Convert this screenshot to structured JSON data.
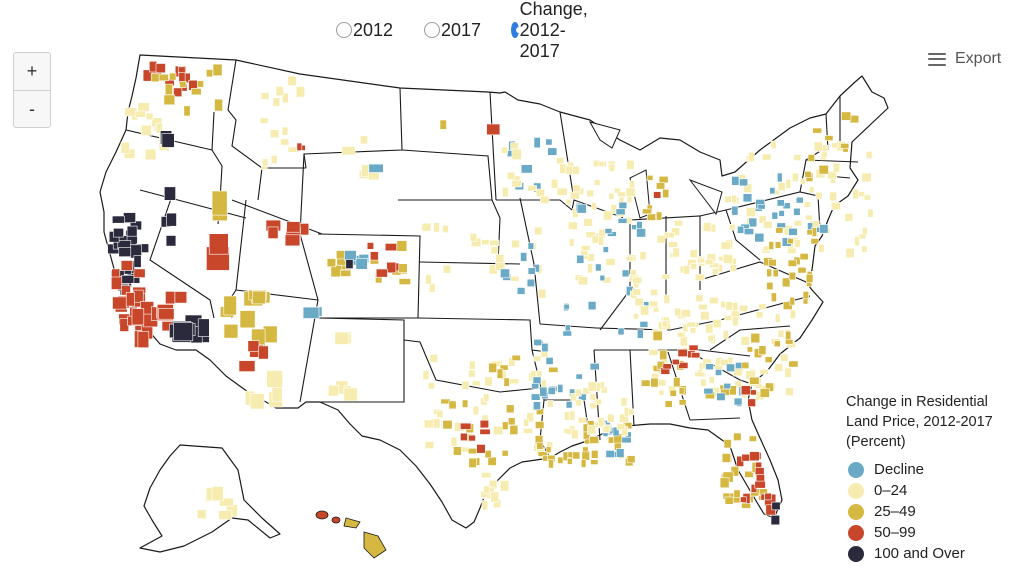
{
  "controls": {
    "options": [
      {
        "label": "2012",
        "selected": false
      },
      {
        "label": "2017",
        "selected": false
      },
      {
        "label": "Change, 2012-2017",
        "selected": true
      }
    ],
    "zoom_in": "+",
    "zoom_out": "-",
    "export_label": "Export",
    "export_icon": "menu-icon"
  },
  "legend": {
    "title_lines": [
      "Change in Residential",
      "Land Price, 2012-2017",
      "(Percent)"
    ],
    "items": [
      {
        "label": "Decline",
        "color": "#6aaac6"
      },
      {
        "label": "0–24",
        "color": "#f7ecb0"
      },
      {
        "label": "25–49",
        "color": "#d5b842"
      },
      {
        "label": "50–99",
        "color": "#c8472b"
      },
      {
        "label": "100 and Over",
        "color": "#2b2a3d"
      }
    ]
  },
  "map": {
    "region": "United States",
    "coloring": "Change in residential land price by county, 2012-2017",
    "colors": {
      "decline": "#6aaac6",
      "low": "#f7ecb0",
      "mid": "#d5b842",
      "high": "#c8472b",
      "top": "#2b2a3d"
    }
  }
}
